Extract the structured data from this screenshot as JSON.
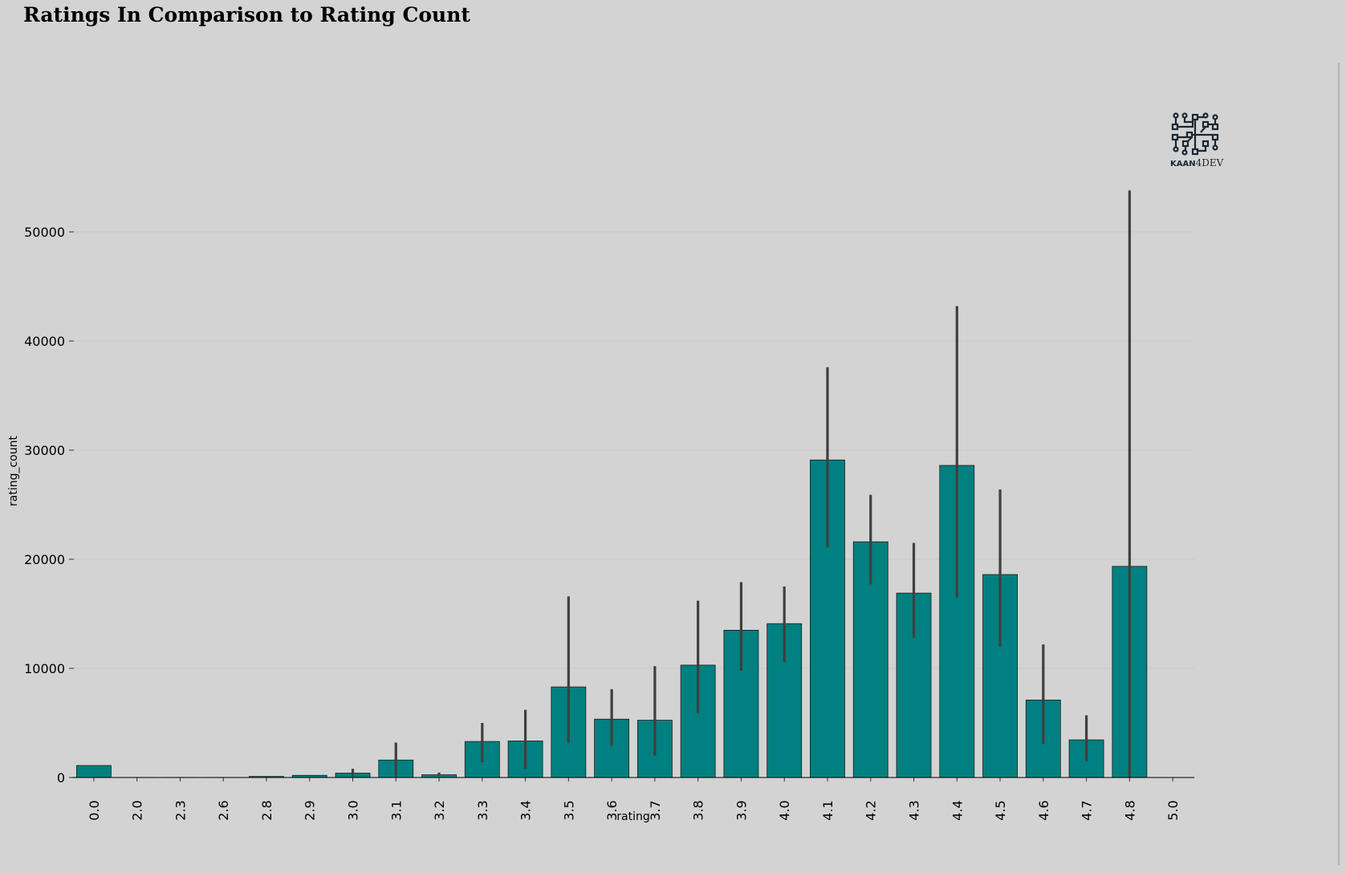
{
  "title": "Ratings In Comparison to Rating Count",
  "logo": {
    "text_bold": "KAAN",
    "text_rest": "4DEV",
    "icon": "circuit-chip-icon"
  },
  "colors": {
    "background": "#d3d3d3",
    "bar": "#008080",
    "bar_edge": "#1a1a1a",
    "error_bar": "#3f3f3f",
    "grid": "#c9c9c9"
  },
  "chart_data": {
    "type": "bar",
    "xlabel": "rating",
    "ylabel": "rating_count",
    "ylim": [
      0,
      60000
    ],
    "yticks": [
      0,
      10000,
      20000,
      30000,
      40000,
      50000
    ],
    "grid": "horizontal",
    "categories": [
      "0.0",
      "2.0",
      "2.3",
      "2.6",
      "2.8",
      "2.9",
      "3.0",
      "3.1",
      "3.2",
      "3.3",
      "3.4",
      "3.5",
      "3.6",
      "3.7",
      "3.8",
      "3.9",
      "4.0",
      "4.1",
      "4.2",
      "4.3",
      "4.4",
      "4.5",
      "4.6",
      "4.7",
      "4.8",
      "5.0"
    ],
    "values": [
      1100,
      10,
      10,
      10,
      100,
      200,
      400,
      1600,
      250,
      3300,
      3350,
      8300,
      5350,
      5250,
      10300,
      13500,
      14100,
      29100,
      21600,
      16900,
      28600,
      18600,
      7100,
      3450,
      19350,
      0
    ],
    "error_low": [
      1100,
      10,
      10,
      10,
      100,
      200,
      100,
      100,
      150,
      1400,
      800,
      3200,
      2900,
      2000,
      5900,
      9800,
      10600,
      21100,
      17700,
      12800,
      16500,
      12000,
      3100,
      1500,
      50,
      0
    ],
    "error_high": [
      1100,
      10,
      10,
      10,
      100,
      200,
      800,
      3200,
      450,
      5000,
      6200,
      16600,
      8100,
      10200,
      16200,
      17900,
      17500,
      37600,
      25900,
      21500,
      43200,
      26400,
      12200,
      5700,
      53800,
      0
    ]
  }
}
